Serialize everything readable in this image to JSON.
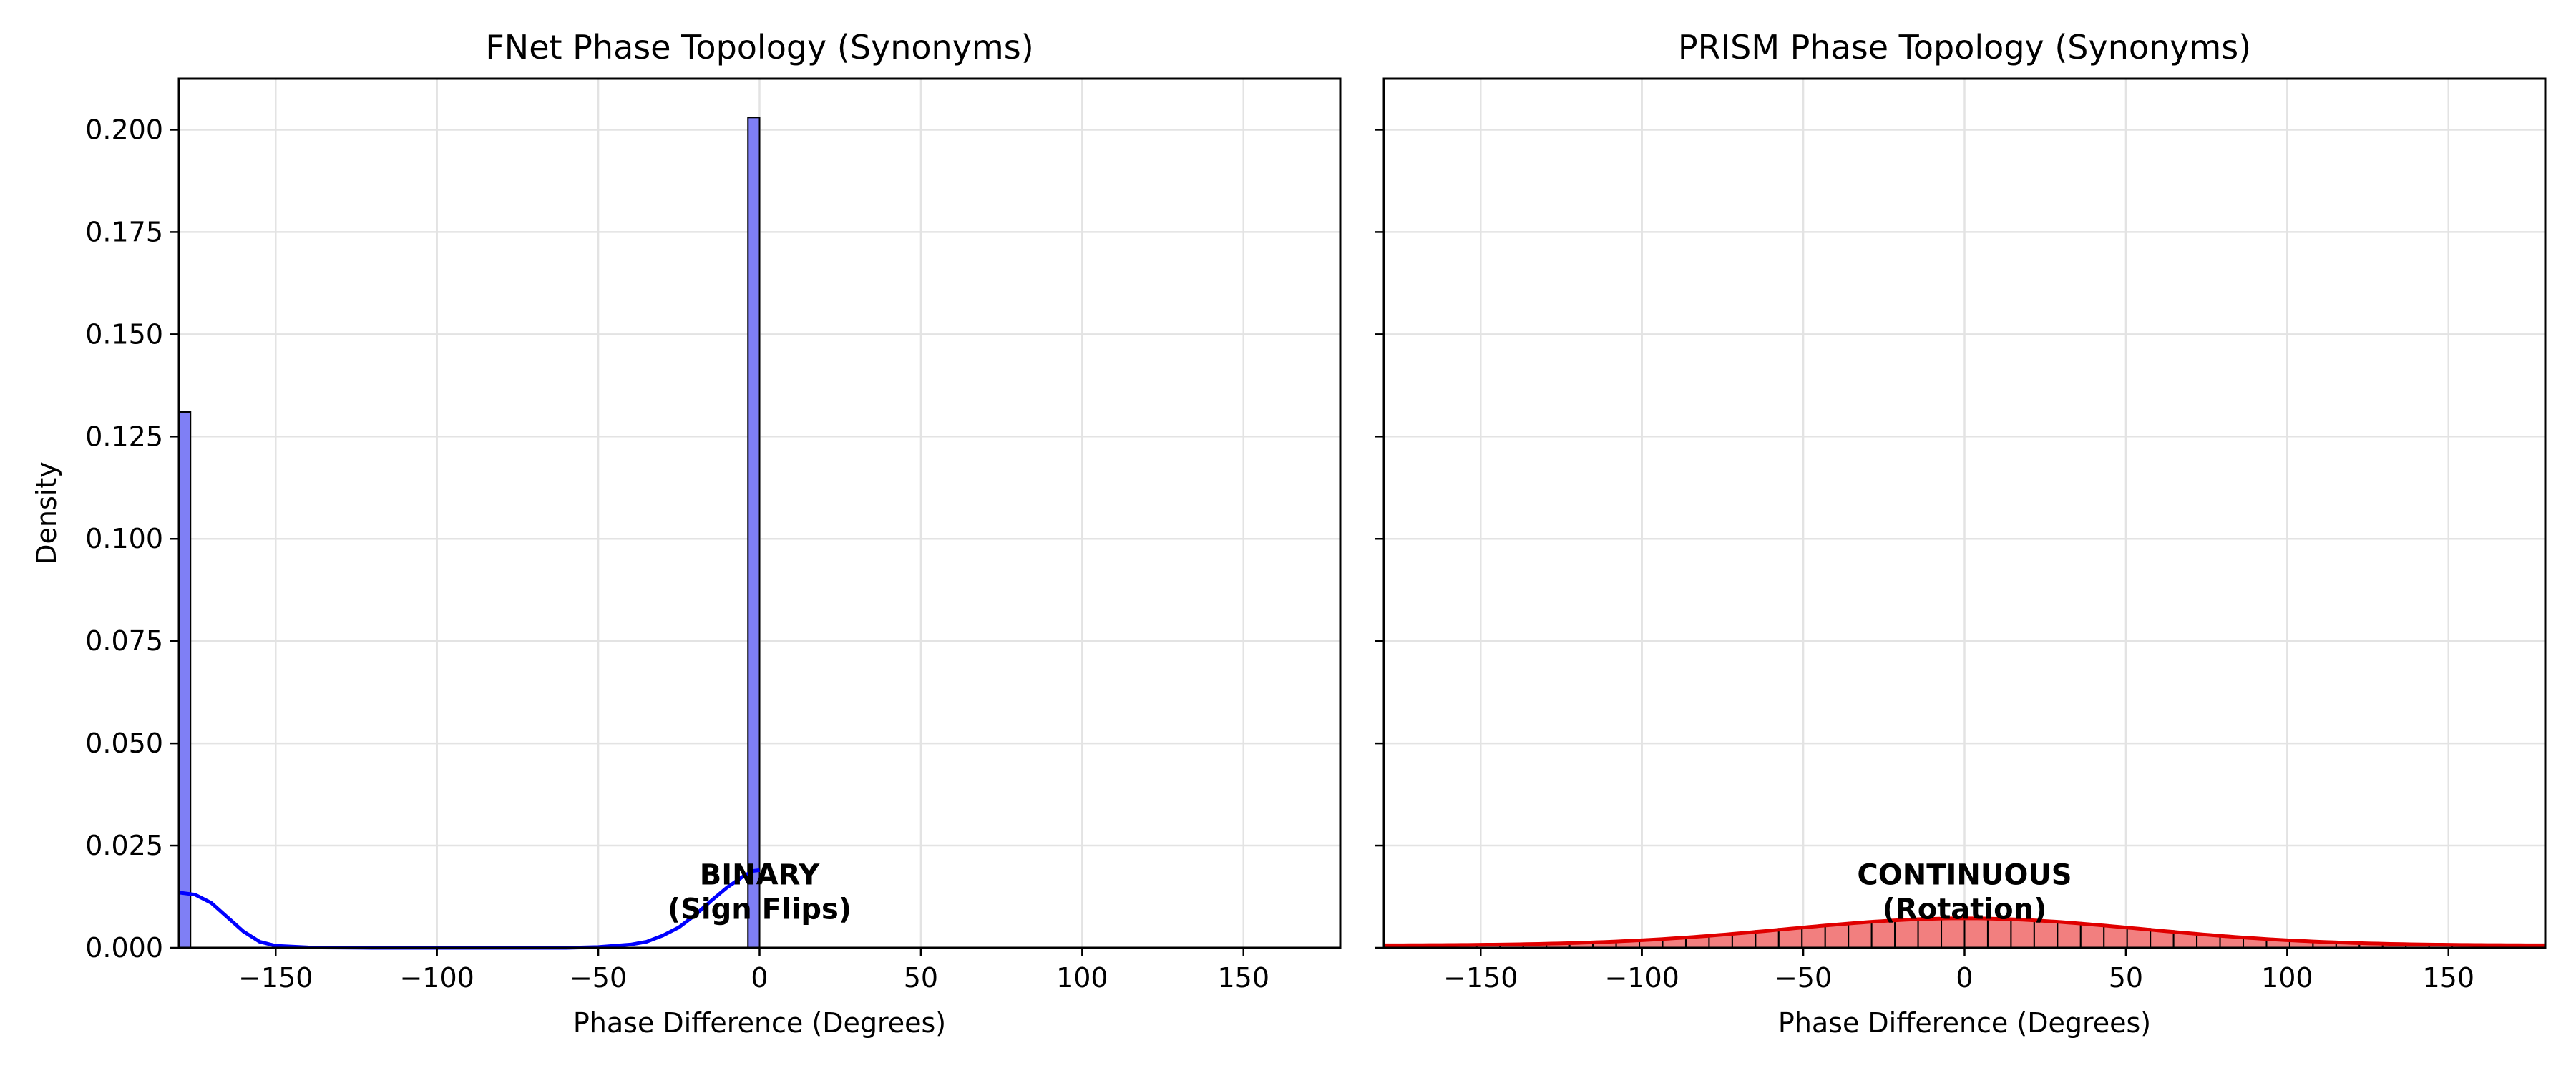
{
  "chart_data": [
    {
      "type": "bar",
      "title": "FNet Phase Topology (Synonyms)",
      "xlabel": "Phase Difference (Degrees)",
      "ylabel": "Density",
      "xlim": [
        -180,
        180
      ],
      "ylim": [
        0,
        0.2125
      ],
      "xticks": [
        -150,
        -100,
        -50,
        0,
        50,
        100,
        150
      ],
      "xtick_labels": [
        "−150",
        "−100",
        "−50",
        "0",
        "50",
        "100",
        "150"
      ],
      "yticks": [
        0.0,
        0.025,
        0.05,
        0.075,
        0.1,
        0.125,
        0.15,
        0.175,
        0.2
      ],
      "ytick_labels": [
        "0.000",
        "0.025",
        "0.050",
        "0.075",
        "0.100",
        "0.125",
        "0.150",
        "0.175",
        "0.200"
      ],
      "grid": true,
      "color": "#0000ff",
      "bar_fill": "#7f7ff5",
      "bins": [
        {
          "x0": -180,
          "x1": -176.4,
          "value": 0.131
        },
        {
          "x0": -3.6,
          "x1": 0,
          "value": 0.203
        }
      ],
      "kde": {
        "x": [
          -180,
          -175,
          -170,
          -165,
          -160,
          -155,
          -150,
          -140,
          -120,
          -100,
          -80,
          -60,
          -50,
          -40,
          -35,
          -30,
          -25,
          -20,
          -15,
          -10,
          -5,
          -2,
          0
        ],
        "y": [
          0.0135,
          0.013,
          0.011,
          0.0075,
          0.004,
          0.0015,
          0.0005,
          0.0001,
          0,
          0,
          0,
          0,
          0.0002,
          0.0008,
          0.0015,
          0.003,
          0.005,
          0.008,
          0.0115,
          0.0148,
          0.0175,
          0.0188,
          0.019
        ]
      },
      "annotation": {
        "x": 0,
        "y": 0.0155,
        "lines": [
          "BINARY",
          "(Sign Flips)"
        ]
      }
    },
    {
      "type": "bar",
      "title": "PRISM Phase Topology (Synonyms)",
      "xlabel": "Phase Difference (Degrees)",
      "ylabel": "",
      "xlim": [
        -180,
        180
      ],
      "ylim": [
        0,
        0.2125
      ],
      "xticks": [
        -150,
        -100,
        -50,
        0,
        50,
        100,
        150
      ],
      "xtick_labels": [
        "−150",
        "−100",
        "−50",
        "0",
        "50",
        "100",
        "150"
      ],
      "yticks": [
        0.0,
        0.025,
        0.05,
        0.075,
        0.1,
        0.125,
        0.15,
        0.175,
        0.2
      ],
      "grid": true,
      "color": "#e00000",
      "bar_fill": "#f27f7f",
      "bin_width": 7.2,
      "kde_sigma": 55,
      "kde_peak": 0.0072,
      "kde_floor": 0.0006,
      "annotation": {
        "x": 0,
        "y": 0.0155,
        "lines": [
          "CONTINUOUS",
          "(Rotation)"
        ]
      }
    }
  ]
}
